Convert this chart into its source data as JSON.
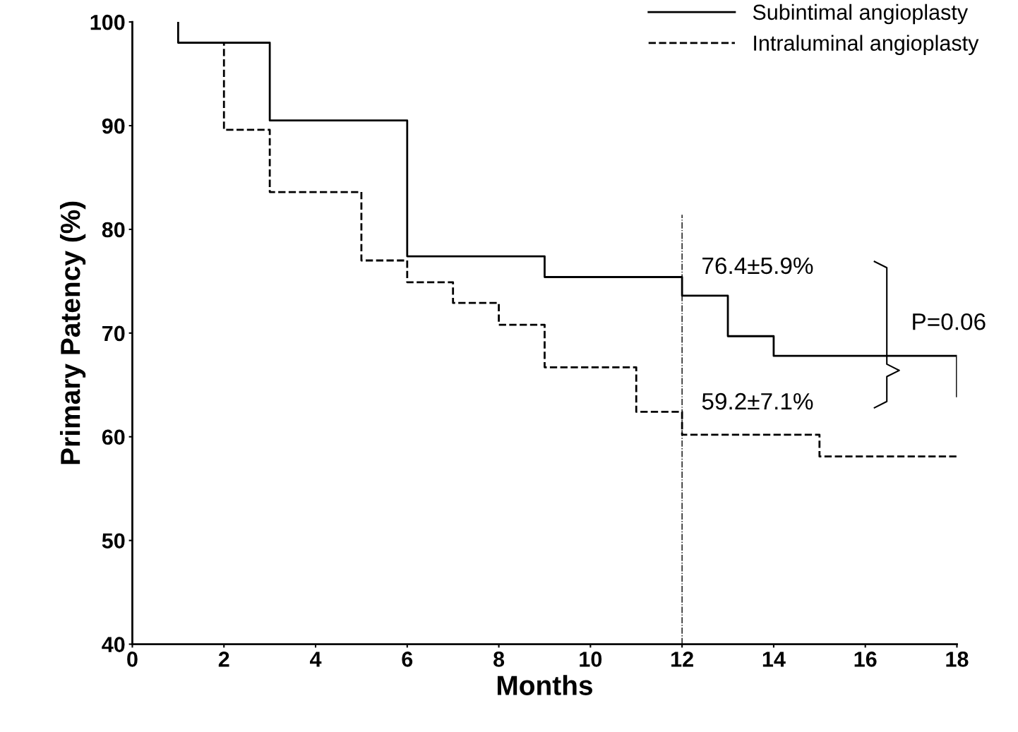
{
  "chart_data": {
    "type": "step",
    "xlabel": "Months",
    "ylabel": "Primary Patency (%)",
    "xlim": [
      0,
      18
    ],
    "xticks": [
      0,
      2,
      4,
      6,
      8,
      10,
      12,
      14,
      16,
      18
    ],
    "ylim": [
      40,
      100
    ],
    "yticks": [
      40,
      50,
      60,
      70,
      80,
      90,
      100
    ],
    "series": [
      {
        "name": "Subintimal angioplasty",
        "color": "#000000",
        "line_style": "solid",
        "x": [
          1,
          1,
          3,
          6,
          9,
          12,
          13,
          14,
          18,
          18
        ],
        "values": [
          100,
          98,
          90.5,
          77.4,
          75.4,
          73.6,
          69.7,
          67.8,
          67.8,
          63.9
        ]
      },
      {
        "name": "Intraluminal angioplasty",
        "color": "#000000",
        "line_style": "dashed",
        "x": [
          1,
          2,
          3,
          5,
          6,
          7,
          8,
          9,
          11,
          12,
          15,
          18
        ],
        "values": [
          98,
          89.6,
          83.6,
          77.0,
          74.9,
          72.9,
          70.8,
          66.7,
          62.4,
          60.2,
          58.1,
          58.1
        ]
      }
    ],
    "ref_lines": [
      {
        "axis": "x",
        "value": 12,
        "label": null,
        "color": "#000000",
        "line_style": "dashdot"
      }
    ],
    "annotations": [
      "76.4±5.9%",
      "59.2±7.1%",
      "P=0.06"
    ],
    "grid": false,
    "legend": "top right",
    "marker": "none"
  }
}
